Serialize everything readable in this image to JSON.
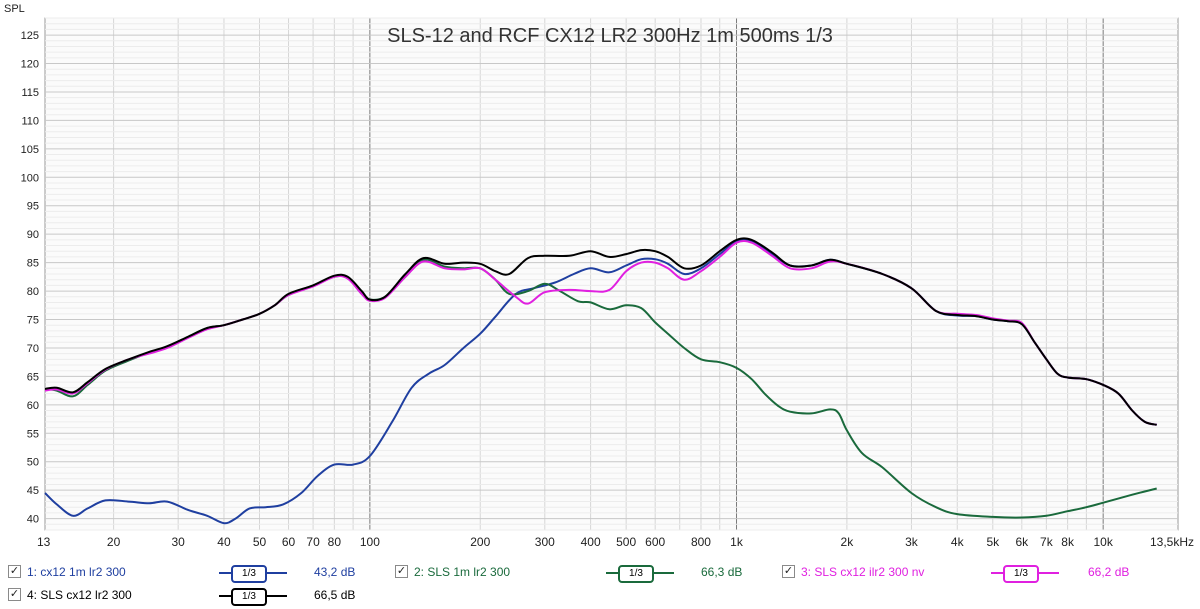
{
  "chart_data": {
    "type": "line",
    "title": "SLS-12 and RCF CX12 LR2 300Hz 1m 500ms 1/3",
    "ylabel": "SPL",
    "xscale": "log",
    "xlim": [
      13,
      16000
    ],
    "ylim": [
      38,
      128
    ],
    "grid": true,
    "y_ticks": [
      40,
      45,
      50,
      55,
      60,
      65,
      70,
      75,
      80,
      85,
      90,
      95,
      100,
      105,
      110,
      115,
      120,
      125
    ],
    "x_ticks": [
      {
        "v": 13,
        "label": "13"
      },
      {
        "v": 20,
        "label": "20"
      },
      {
        "v": 30,
        "label": "30"
      },
      {
        "v": 40,
        "label": "40"
      },
      {
        "v": 50,
        "label": "50"
      },
      {
        "v": 60,
        "label": "60"
      },
      {
        "v": 70,
        "label": "70"
      },
      {
        "v": 80,
        "label": "80"
      },
      {
        "v": 100,
        "label": "100"
      },
      {
        "v": 200,
        "label": "200"
      },
      {
        "v": 300,
        "label": "300"
      },
      {
        "v": 400,
        "label": "400"
      },
      {
        "v": 500,
        "label": "500"
      },
      {
        "v": 600,
        "label": "600"
      },
      {
        "v": 800,
        "label": "800"
      },
      {
        "v": 1000,
        "label": "1k"
      },
      {
        "v": 2000,
        "label": "2k"
      },
      {
        "v": 3000,
        "label": "3k"
      },
      {
        "v": 4000,
        "label": "4k"
      },
      {
        "v": 5000,
        "label": "5k"
      },
      {
        "v": 6000,
        "label": "6k"
      },
      {
        "v": 7000,
        "label": "7k"
      },
      {
        "v": 8000,
        "label": "8k"
      },
      {
        "v": 10000,
        "label": "10k"
      },
      {
        "v": 13500,
        "label": "13,5kHz"
      }
    ],
    "series": [
      {
        "name": "cx12 1m lr2 300",
        "color": "#1f3fa0",
        "points": [
          [
            13,
            44.5
          ],
          [
            14,
            42.5
          ],
          [
            15.5,
            40.5
          ],
          [
            17,
            41.8
          ],
          [
            19,
            43.2
          ],
          [
            22,
            43.0
          ],
          [
            25,
            42.7
          ],
          [
            28,
            43.0
          ],
          [
            32,
            41.5
          ],
          [
            36,
            40.5
          ],
          [
            40,
            39.2
          ],
          [
            43,
            40.0
          ],
          [
            47,
            41.8
          ],
          [
            52,
            42.0
          ],
          [
            58,
            42.5
          ],
          [
            65,
            44.5
          ],
          [
            72,
            47.5
          ],
          [
            80,
            49.5
          ],
          [
            90,
            49.5
          ],
          [
            100,
            51.0
          ],
          [
            115,
            57.0
          ],
          [
            130,
            63.0
          ],
          [
            145,
            65.5
          ],
          [
            160,
            67.0
          ],
          [
            180,
            70.0
          ],
          [
            200,
            72.5
          ],
          [
            220,
            75.5
          ],
          [
            250,
            79.5
          ],
          [
            280,
            80.5
          ],
          [
            320,
            81.5
          ],
          [
            360,
            83.0
          ],
          [
            400,
            84.0
          ],
          [
            450,
            83.3
          ],
          [
            500,
            84.5
          ],
          [
            550,
            85.6
          ],
          [
            600,
            85.6
          ],
          [
            650,
            84.8
          ],
          [
            720,
            83.0
          ],
          [
            800,
            84.0
          ],
          [
            900,
            86.5
          ],
          [
            1000,
            88.7
          ],
          [
            1100,
            88.7
          ],
          [
            1250,
            86.5
          ],
          [
            1400,
            84.5
          ],
          [
            1600,
            84.5
          ],
          [
            1800,
            85.5
          ],
          [
            2000,
            84.8
          ],
          [
            2500,
            83.0
          ],
          [
            3000,
            80.5
          ],
          [
            3500,
            76.5
          ],
          [
            4000,
            75.7
          ],
          [
            4500,
            75.6
          ],
          [
            5000,
            75.0
          ],
          [
            5500,
            74.7
          ],
          [
            6000,
            74.2
          ],
          [
            6500,
            71.0
          ],
          [
            7000,
            68.0
          ],
          [
            7500,
            65.5
          ],
          [
            8000,
            64.8
          ],
          [
            9000,
            64.5
          ],
          [
            10000,
            63.5
          ],
          [
            11000,
            62.0
          ],
          [
            12000,
            59.0
          ],
          [
            13000,
            57.0
          ],
          [
            14000,
            56.5
          ]
        ]
      },
      {
        "name": "SLS 1m lr2 300",
        "color": "#1a6a3c",
        "points": [
          [
            13,
            62.8
          ],
          [
            14,
            62.5
          ],
          [
            15.5,
            61.5
          ],
          [
            17,
            63.5
          ],
          [
            19,
            66.0
          ],
          [
            22,
            67.8
          ],
          [
            25,
            69.2
          ],
          [
            28,
            70.2
          ],
          [
            32,
            72.0
          ],
          [
            36,
            73.5
          ],
          [
            40,
            74.0
          ],
          [
            45,
            75.0
          ],
          [
            50,
            76.0
          ],
          [
            55,
            77.5
          ],
          [
            60,
            79.3
          ],
          [
            70,
            81.0
          ],
          [
            80,
            82.5
          ],
          [
            87,
            82.3
          ],
          [
            95,
            79.5
          ],
          [
            100,
            78.5
          ],
          [
            110,
            79.0
          ],
          [
            125,
            82.5
          ],
          [
            140,
            85.5
          ],
          [
            160,
            84.3
          ],
          [
            180,
            84.0
          ],
          [
            200,
            84.0
          ],
          [
            220,
            82.0
          ],
          [
            240,
            79.5
          ],
          [
            270,
            80.0
          ],
          [
            300,
            81.3
          ],
          [
            330,
            80.0
          ],
          [
            370,
            78.2
          ],
          [
            400,
            78.0
          ],
          [
            450,
            76.8
          ],
          [
            500,
            77.5
          ],
          [
            550,
            77.0
          ],
          [
            600,
            74.5
          ],
          [
            650,
            72.5
          ],
          [
            720,
            70.0
          ],
          [
            800,
            68.0
          ],
          [
            900,
            67.5
          ],
          [
            1000,
            66.5
          ],
          [
            1100,
            64.5
          ],
          [
            1200,
            61.8
          ],
          [
            1300,
            59.8
          ],
          [
            1400,
            58.8
          ],
          [
            1600,
            58.5
          ],
          [
            1800,
            59.2
          ],
          [
            1900,
            58.5
          ],
          [
            2000,
            55.5
          ],
          [
            2200,
            51.5
          ],
          [
            2500,
            49.0
          ],
          [
            3000,
            44.5
          ],
          [
            3500,
            42.0
          ],
          [
            4000,
            40.8
          ],
          [
            5000,
            40.3
          ],
          [
            6000,
            40.2
          ],
          [
            7000,
            40.5
          ],
          [
            8000,
            41.3
          ],
          [
            9000,
            42.0
          ],
          [
            10000,
            42.8
          ],
          [
            12000,
            44.2
          ],
          [
            14000,
            45.3
          ]
        ]
      },
      {
        "name": "SLS cx12 ilr2 300 nv",
        "color": "#e020e0",
        "points": [
          [
            13,
            62.5
          ],
          [
            14,
            62.7
          ],
          [
            15.5,
            62.0
          ],
          [
            17,
            63.8
          ],
          [
            19,
            66.2
          ],
          [
            22,
            68.0
          ],
          [
            25,
            69.0
          ],
          [
            28,
            70.0
          ],
          [
            32,
            71.8
          ],
          [
            36,
            73.3
          ],
          [
            40,
            74.0
          ],
          [
            45,
            75.0
          ],
          [
            50,
            76.0
          ],
          [
            55,
            77.5
          ],
          [
            60,
            79.3
          ],
          [
            70,
            80.8
          ],
          [
            80,
            82.5
          ],
          [
            87,
            82.2
          ],
          [
            95,
            79.5
          ],
          [
            100,
            78.3
          ],
          [
            110,
            78.8
          ],
          [
            125,
            82.5
          ],
          [
            140,
            85.2
          ],
          [
            160,
            84.0
          ],
          [
            180,
            83.8
          ],
          [
            200,
            84.0
          ],
          [
            220,
            82.0
          ],
          [
            250,
            79.0
          ],
          [
            270,
            77.8
          ],
          [
            300,
            79.8
          ],
          [
            350,
            80.2
          ],
          [
            400,
            80.0
          ],
          [
            450,
            80.2
          ],
          [
            500,
            83.5
          ],
          [
            550,
            85.0
          ],
          [
            600,
            85.0
          ],
          [
            650,
            84.0
          ],
          [
            720,
            82.0
          ],
          [
            800,
            83.5
          ],
          [
            900,
            86.0
          ],
          [
            1000,
            88.5
          ],
          [
            1100,
            88.5
          ],
          [
            1250,
            86.2
          ],
          [
            1400,
            84.0
          ],
          [
            1600,
            84.0
          ],
          [
            1800,
            85.2
          ],
          [
            2000,
            84.8
          ],
          [
            2500,
            83.0
          ],
          [
            3000,
            80.5
          ],
          [
            3500,
            76.5
          ],
          [
            4000,
            76.0
          ],
          [
            4500,
            75.8
          ],
          [
            5000,
            75.2
          ],
          [
            5500,
            74.8
          ],
          [
            6000,
            74.4
          ],
          [
            6500,
            71.0
          ],
          [
            7000,
            68.0
          ],
          [
            7500,
            65.5
          ],
          [
            8000,
            64.8
          ],
          [
            9000,
            64.5
          ],
          [
            10000,
            63.5
          ],
          [
            11000,
            62.0
          ],
          [
            12000,
            59.0
          ],
          [
            13000,
            57.0
          ],
          [
            14000,
            56.5
          ]
        ]
      },
      {
        "name": "SLS cx12 lr2 300",
        "color": "#000000",
        "points": [
          [
            13,
            62.8
          ],
          [
            14,
            63.0
          ],
          [
            15.5,
            62.2
          ],
          [
            17,
            64.0
          ],
          [
            19,
            66.3
          ],
          [
            22,
            68.0
          ],
          [
            25,
            69.3
          ],
          [
            28,
            70.3
          ],
          [
            32,
            72.0
          ],
          [
            36,
            73.5
          ],
          [
            40,
            74.0
          ],
          [
            45,
            75.0
          ],
          [
            50,
            76.0
          ],
          [
            55,
            77.5
          ],
          [
            60,
            79.5
          ],
          [
            70,
            81.0
          ],
          [
            80,
            82.7
          ],
          [
            87,
            82.5
          ],
          [
            95,
            80.0
          ],
          [
            100,
            78.5
          ],
          [
            110,
            79.0
          ],
          [
            125,
            83.0
          ],
          [
            140,
            85.8
          ],
          [
            160,
            84.8
          ],
          [
            180,
            85.0
          ],
          [
            200,
            84.8
          ],
          [
            220,
            83.5
          ],
          [
            240,
            83.0
          ],
          [
            270,
            85.8
          ],
          [
            300,
            86.2
          ],
          [
            350,
            86.2
          ],
          [
            400,
            87.0
          ],
          [
            450,
            86.0
          ],
          [
            500,
            86.5
          ],
          [
            550,
            87.2
          ],
          [
            600,
            87.0
          ],
          [
            650,
            86.0
          ],
          [
            720,
            84.0
          ],
          [
            800,
            84.5
          ],
          [
            900,
            87.0
          ],
          [
            1000,
            89.0
          ],
          [
            1100,
            89.0
          ],
          [
            1250,
            86.8
          ],
          [
            1400,
            84.5
          ],
          [
            1600,
            84.5
          ],
          [
            1800,
            85.5
          ],
          [
            2000,
            84.8
          ],
          [
            2500,
            83.0
          ],
          [
            3000,
            80.5
          ],
          [
            3500,
            76.5
          ],
          [
            4000,
            75.8
          ],
          [
            4500,
            75.6
          ],
          [
            5000,
            75.0
          ],
          [
            5500,
            74.7
          ],
          [
            6000,
            74.2
          ],
          [
            6500,
            71.0
          ],
          [
            7000,
            68.0
          ],
          [
            7500,
            65.5
          ],
          [
            8000,
            64.8
          ],
          [
            9000,
            64.5
          ],
          [
            10000,
            63.5
          ],
          [
            11000,
            62.0
          ],
          [
            12000,
            59.0
          ],
          [
            13000,
            57.0
          ],
          [
            14000,
            56.5
          ]
        ]
      }
    ]
  },
  "legend": [
    {
      "label": "1: cx12 1m lr2 300",
      "smoothing": "1/3",
      "value": "43,2 dB",
      "color": "#1f3fa0",
      "text_color": "#1f3fa0",
      "checked": "✓"
    },
    {
      "label": "2: SLS 1m lr2 300",
      "smoothing": "1/3",
      "value": "66,3 dB",
      "color": "#1a6a3c",
      "text_color": "#1a6a3c",
      "checked": "✓"
    },
    {
      "label": "3: SLS cx12 ilr2 300 nv",
      "smoothing": "1/3",
      "value": "66,2 dB",
      "color": "#e020e0",
      "text_color": "#e020e0",
      "checked": "✓"
    },
    {
      "label": "4: SLS cx12 lr2 300",
      "smoothing": "1/3",
      "value": "66,5 dB",
      "color": "#000000",
      "text_color": "#000000",
      "checked": "✓"
    }
  ]
}
